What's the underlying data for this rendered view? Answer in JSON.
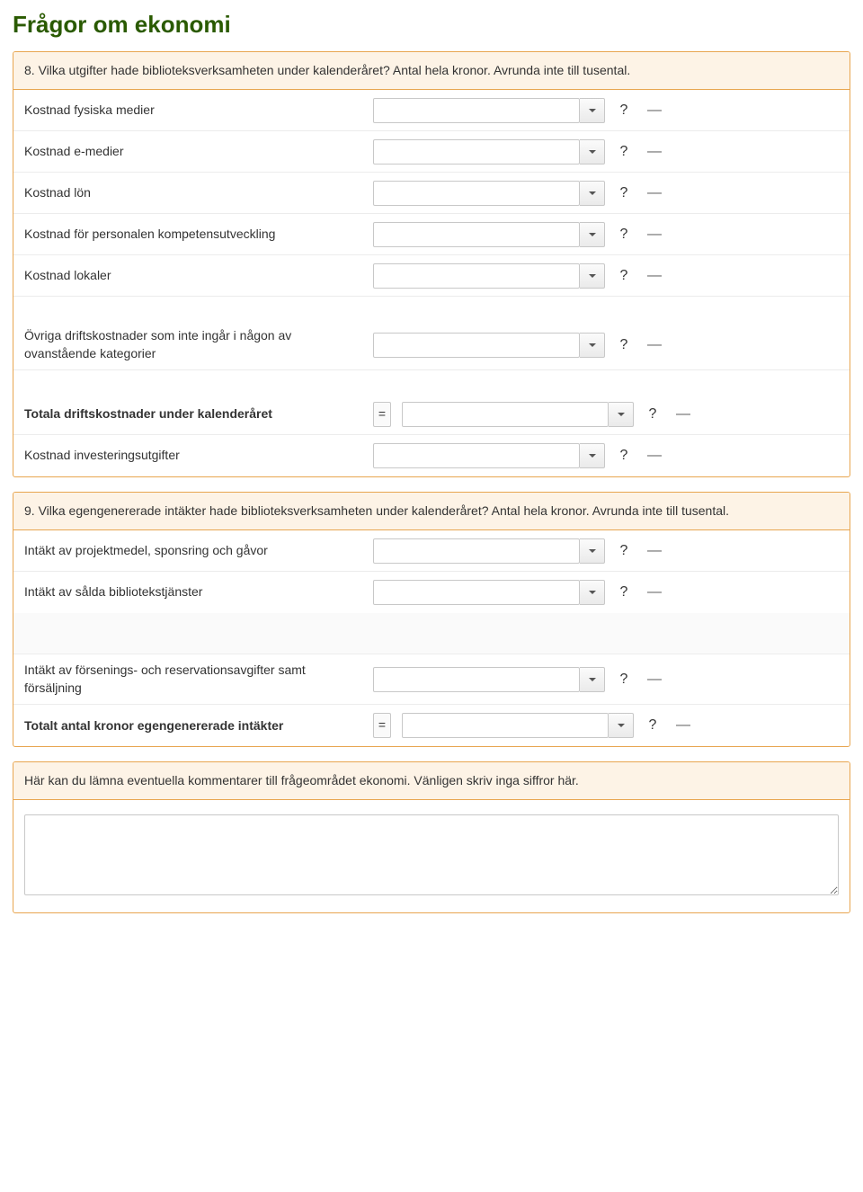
{
  "page_title": "Frågor om ekonomi",
  "q8": {
    "heading": "8. Vilka utgifter hade biblioteksverksamheten under kalenderåret? Antal hela kronor. Avrunda inte till tusental.",
    "rows": [
      {
        "label": "Kostnad fysiska medier",
        "bold": false,
        "eq": false
      },
      {
        "label": "Kostnad e-medier",
        "bold": false,
        "eq": false
      },
      {
        "label": "Kostnad lön",
        "bold": false,
        "eq": false
      },
      {
        "label": "Kostnad för personalen kompetensutveckling",
        "bold": false,
        "eq": false
      },
      {
        "label": "Kostnad lokaler",
        "bold": false,
        "eq": false
      },
      {
        "label": "Övriga driftskostnader som inte ingår i någon av ovanstående kategorier",
        "bold": false,
        "eq": false
      },
      {
        "label": "Totala driftskostnader under kalenderåret",
        "bold": true,
        "eq": true
      },
      {
        "label": "Kostnad investeringsutgifter",
        "bold": false,
        "eq": false
      }
    ],
    "help_symbol": "?",
    "dash_symbol": "—"
  },
  "q9": {
    "heading": "9. Vilka egengenererade intäkter hade biblioteksverksamheten under kalenderåret? Antal hela kronor. Avrunda inte till tusental.",
    "rows_a": [
      {
        "label": "Intäkt av projektmedel, sponsring och gåvor",
        "bold": false,
        "eq": false
      },
      {
        "label": "Intäkt av sålda bibliotekstjänster",
        "bold": false,
        "eq": false
      }
    ],
    "rows_b": [
      {
        "label": "Intäkt av försenings- och reservationsavgifter samt försäljning",
        "bold": false,
        "eq": false
      },
      {
        "label": "Totalt antal kronor egengenererade intäkter",
        "bold": true,
        "eq": true
      }
    ],
    "help_symbol": "?",
    "dash_symbol": "—"
  },
  "comments": {
    "heading": "Här kan du lämna eventuella kommentarer till frågeområdet ekonomi. Vänligen skriv inga siffror här."
  },
  "colors": {
    "title": "#2a5a00",
    "panel_border": "#e8a650",
    "panel_header_bg": "#fdf3e6",
    "row_border": "#ececec",
    "input_border": "#c8c8c8",
    "text": "#333333"
  }
}
